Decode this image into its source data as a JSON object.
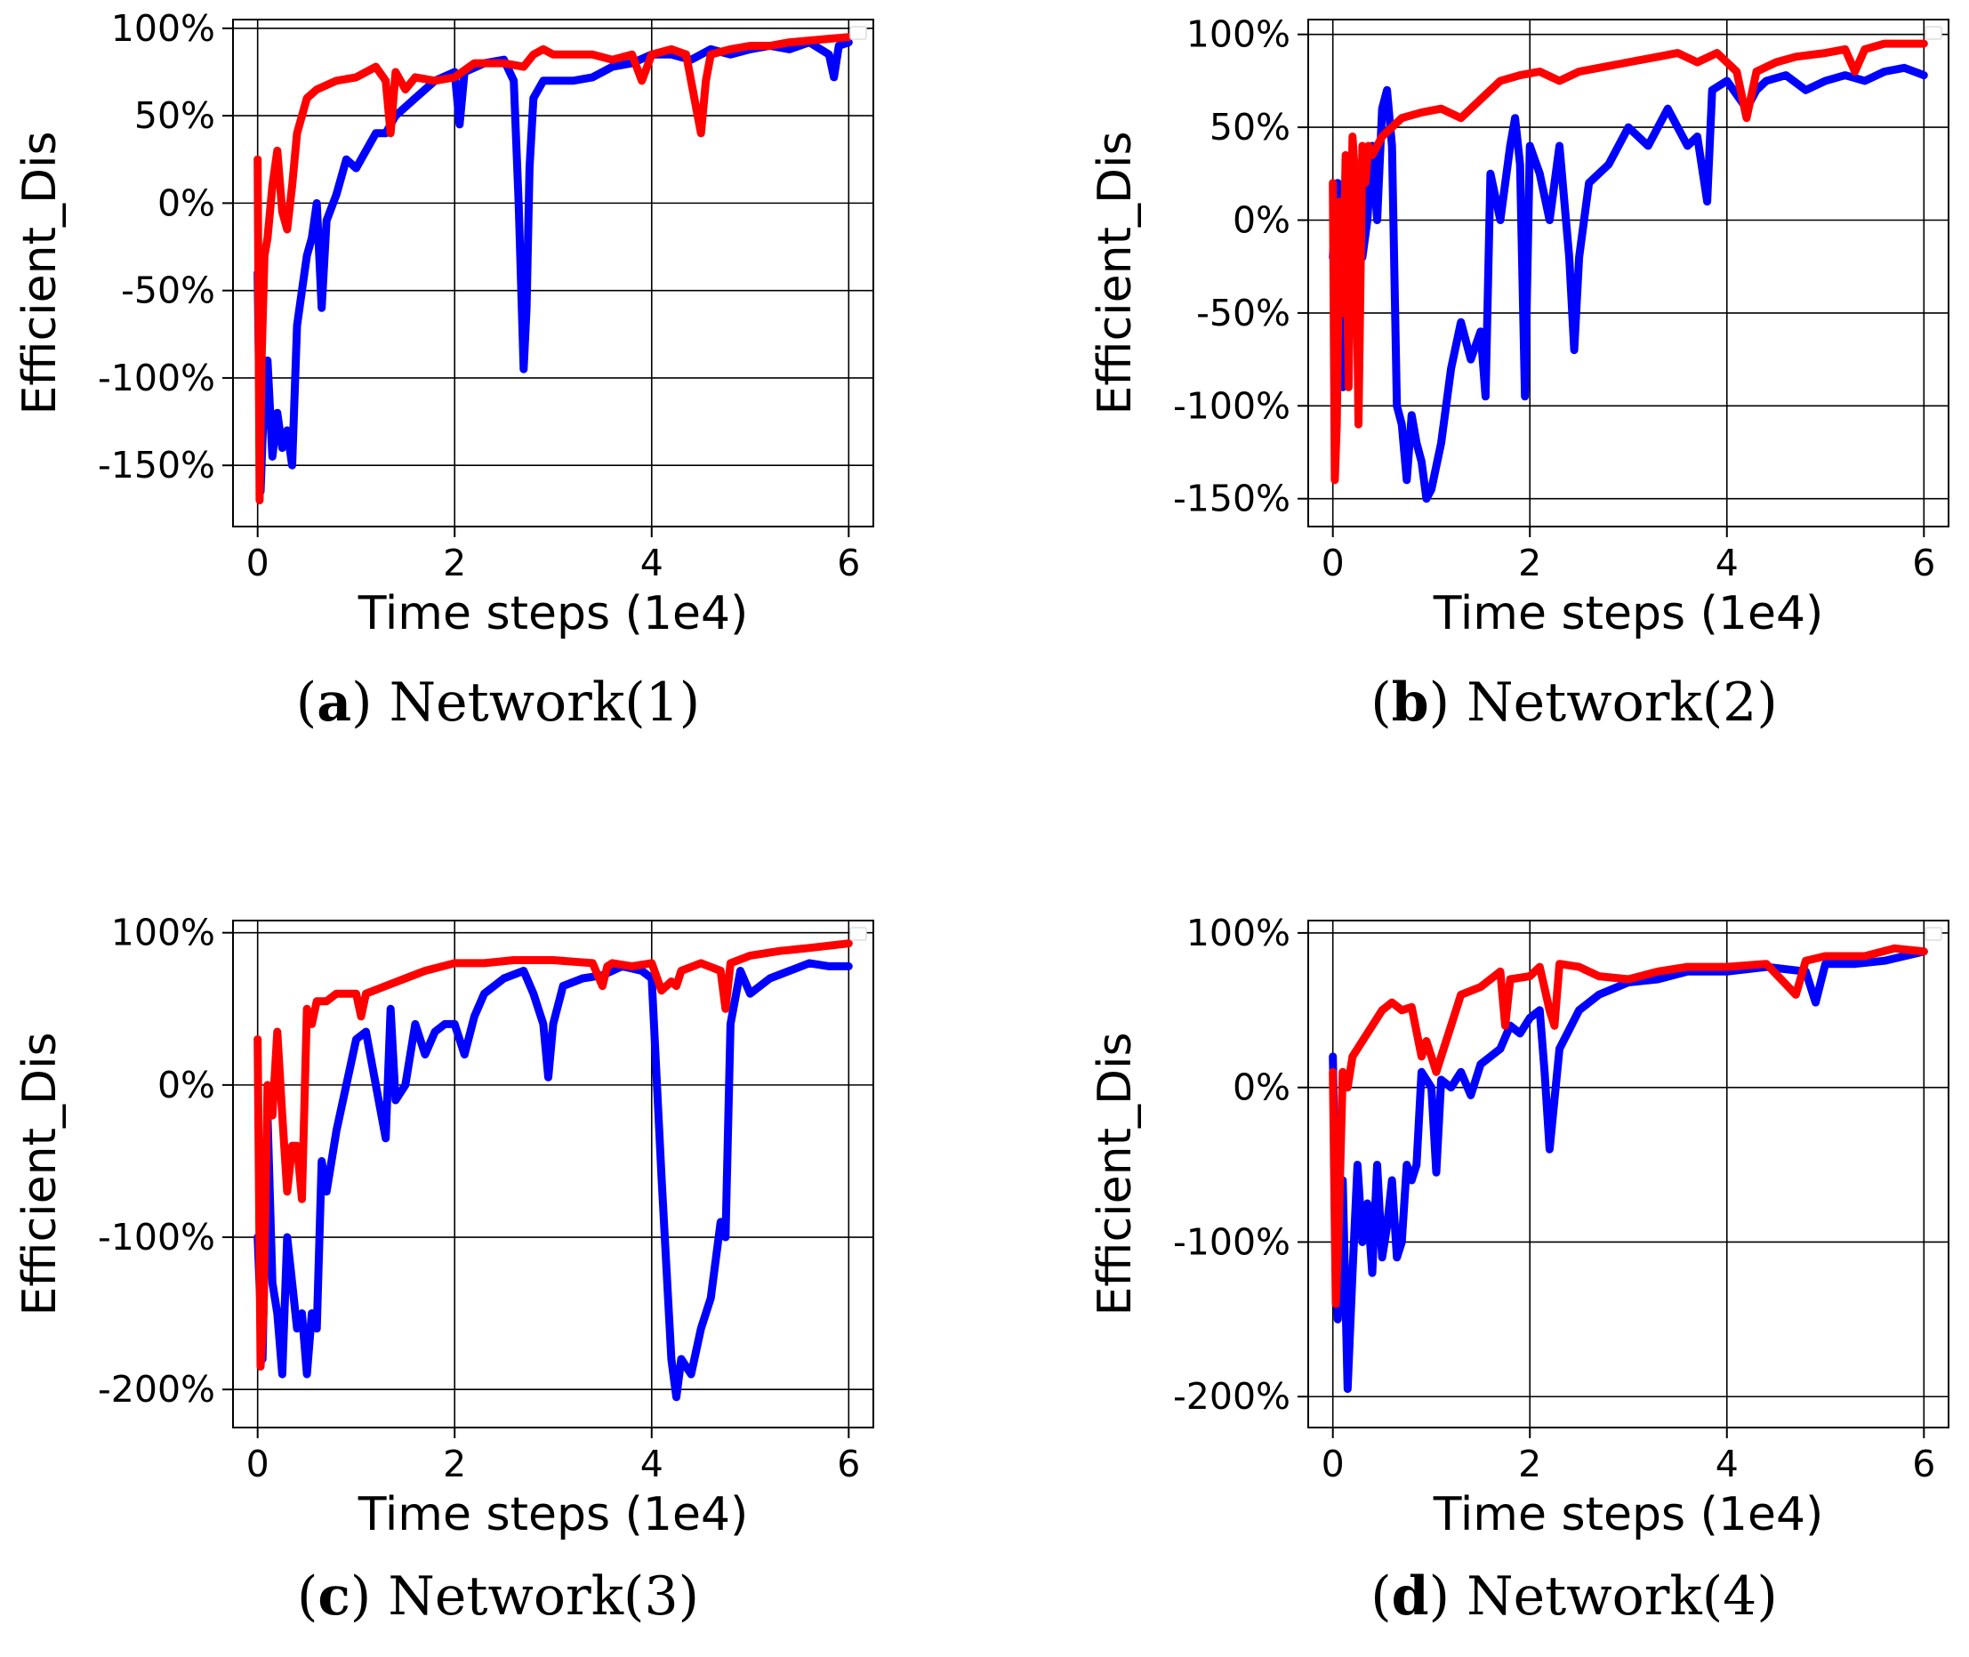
{
  "chart_data": [
    {
      "type": "line",
      "caption": {
        "letter": "a",
        "title": "Network(1)"
      },
      "xlabel": "Time steps (1e4)",
      "ylabel": "Efficient_Dis",
      "xlim": [
        -0.25,
        6.25
      ],
      "ylim": [
        -185,
        105
      ],
      "xticks": [
        0,
        2,
        4,
        6
      ],
      "xtick_labels": [
        "0",
        "2",
        "4",
        "6"
      ],
      "yticks": [
        -150,
        -100,
        -50,
        0,
        50,
        100
      ],
      "ytick_labels": [
        "-150%",
        "-100%",
        "-50%",
        "0%",
        "50%",
        "100%"
      ],
      "grid": true,
      "series": [
        {
          "name": "blue",
          "color": "#0000ff",
          "x": [
            0,
            0.03,
            0.06,
            0.1,
            0.15,
            0.2,
            0.25,
            0.3,
            0.35,
            0.4,
            0.45,
            0.5,
            0.55,
            0.6,
            0.65,
            0.7,
            0.8,
            0.9,
            1.0,
            1.1,
            1.2,
            1.3,
            1.4,
            1.5,
            1.6,
            1.8,
            2.0,
            2.05,
            2.1,
            2.3,
            2.5,
            2.6,
            2.65,
            2.7,
            2.73,
            2.76,
            2.8,
            2.9,
            3.0,
            3.2,
            3.4,
            3.6,
            3.8,
            4.0,
            4.2,
            4.4,
            4.6,
            4.8,
            5.0,
            5.2,
            5.4,
            5.6,
            5.8,
            5.85,
            5.9,
            6.0
          ],
          "y": [
            -40,
            -165,
            -120,
            -90,
            -145,
            -120,
            -140,
            -130,
            -150,
            -70,
            -50,
            -30,
            -20,
            0,
            -60,
            -10,
            5,
            25,
            20,
            30,
            40,
            40,
            50,
            55,
            60,
            70,
            75,
            45,
            75,
            80,
            82,
            70,
            0,
            -95,
            -60,
            20,
            60,
            70,
            70,
            70,
            72,
            78,
            80,
            85,
            85,
            82,
            88,
            85,
            88,
            90,
            88,
            92,
            85,
            72,
            90,
            92
          ]
        },
        {
          "name": "red",
          "color": "#ff0000",
          "x": [
            0,
            0.02,
            0.04,
            0.07,
            0.1,
            0.15,
            0.2,
            0.25,
            0.3,
            0.35,
            0.4,
            0.5,
            0.6,
            0.8,
            1.0,
            1.2,
            1.3,
            1.35,
            1.4,
            1.5,
            1.6,
            1.8,
            2.0,
            2.2,
            2.5,
            2.7,
            2.8,
            2.9,
            3.0,
            3.2,
            3.4,
            3.6,
            3.8,
            3.9,
            4.0,
            4.2,
            4.35,
            4.45,
            4.5,
            4.55,
            4.6,
            4.8,
            5.0,
            5.2,
            5.4,
            5.6,
            5.8,
            6.0
          ],
          "y": [
            25,
            -170,
            -90,
            -30,
            -20,
            10,
            30,
            -5,
            -15,
            10,
            40,
            60,
            65,
            70,
            72,
            78,
            70,
            40,
            75,
            65,
            72,
            70,
            72,
            80,
            80,
            78,
            85,
            88,
            85,
            85,
            85,
            82,
            85,
            70,
            85,
            88,
            85,
            55,
            40,
            70,
            85,
            88,
            90,
            90,
            92,
            93,
            94,
            95
          ]
        }
      ]
    },
    {
      "type": "line",
      "caption": {
        "letter": "b",
        "title": "Network(2)"
      },
      "xlabel": "Time steps (1e4)",
      "ylabel": "Efficient_Dis",
      "xlim": [
        -0.25,
        6.25
      ],
      "ylim": [
        -165,
        108
      ],
      "xticks": [
        0,
        2,
        4,
        6
      ],
      "xtick_labels": [
        "0",
        "2",
        "4",
        "6"
      ],
      "yticks": [
        -150,
        -100,
        -50,
        0,
        50,
        100
      ],
      "ytick_labels": [
        "-150%",
        "-100%",
        "-50%",
        "0%",
        "50%",
        "100%"
      ],
      "grid": true,
      "series": [
        {
          "name": "blue",
          "color": "#0000ff",
          "x": [
            0,
            0.05,
            0.1,
            0.15,
            0.2,
            0.3,
            0.35,
            0.4,
            0.45,
            0.5,
            0.55,
            0.6,
            0.65,
            0.7,
            0.75,
            0.8,
            0.85,
            0.9,
            0.95,
            1.0,
            1.1,
            1.2,
            1.3,
            1.4,
            1.5,
            1.55,
            1.6,
            1.7,
            1.8,
            1.85,
            1.9,
            1.95,
            2.0,
            2.1,
            2.2,
            2.3,
            2.4,
            2.45,
            2.5,
            2.6,
            2.8,
            3.0,
            3.2,
            3.4,
            3.6,
            3.7,
            3.8,
            3.85,
            4.0,
            4.2,
            4.3,
            4.4,
            4.6,
            4.8,
            5.0,
            5.2,
            5.4,
            5.6,
            5.8,
            6.0
          ],
          "y": [
            -20,
            20,
            -90,
            10,
            30,
            -20,
            0,
            40,
            0,
            60,
            70,
            40,
            -100,
            -110,
            -140,
            -105,
            -120,
            -130,
            -150,
            -145,
            -120,
            -80,
            -55,
            -75,
            -60,
            -95,
            25,
            0,
            40,
            55,
            30,
            -95,
            40,
            25,
            0,
            40,
            -20,
            -70,
            -20,
            20,
            30,
            50,
            40,
            60,
            40,
            45,
            10,
            70,
            75,
            60,
            70,
            75,
            78,
            70,
            75,
            78,
            75,
            80,
            82,
            78
          ]
        },
        {
          "name": "red",
          "color": "#ff0000",
          "x": [
            0,
            0.02,
            0.04,
            0.07,
            0.1,
            0.13,
            0.16,
            0.2,
            0.23,
            0.26,
            0.3,
            0.33,
            0.36,
            0.4,
            0.5,
            0.7,
            0.9,
            1.1,
            1.3,
            1.5,
            1.7,
            1.9,
            2.1,
            2.3,
            2.5,
            2.7,
            3.0,
            3.3,
            3.5,
            3.7,
            3.9,
            4.1,
            4.2,
            4.3,
            4.5,
            4.7,
            5.0,
            5.2,
            5.3,
            5.4,
            5.6,
            5.8,
            6.0
          ],
          "y": [
            20,
            -140,
            -110,
            10,
            -50,
            35,
            -90,
            45,
            20,
            -110,
            40,
            20,
            40,
            35,
            45,
            55,
            58,
            60,
            55,
            65,
            75,
            78,
            80,
            75,
            80,
            82,
            85,
            88,
            90,
            85,
            90,
            80,
            55,
            80,
            85,
            88,
            90,
            92,
            80,
            92,
            95,
            95,
            95
          ]
        }
      ]
    },
    {
      "type": "line",
      "caption": {
        "letter": "c",
        "title": "Network(3)"
      },
      "xlabel": "Time steps (1e4)",
      "ylabel": "Efficient_Dis",
      "xlim": [
        -0.25,
        6.25
      ],
      "ylim": [
        -225,
        108
      ],
      "xticks": [
        0,
        2,
        4,
        6
      ],
      "xtick_labels": [
        "0",
        "2",
        "4",
        "6"
      ],
      "yticks": [
        -200,
        -100,
        0,
        100
      ],
      "ytick_labels": [
        "-200%",
        "-100%",
        "0%",
        "100%"
      ],
      "grid": true,
      "series": [
        {
          "name": "blue",
          "color": "#0000ff",
          "x": [
            0,
            0.05,
            0.1,
            0.15,
            0.2,
            0.25,
            0.3,
            0.35,
            0.4,
            0.45,
            0.5,
            0.55,
            0.6,
            0.65,
            0.7,
            0.8,
            0.9,
            1.0,
            1.1,
            1.2,
            1.3,
            1.35,
            1.4,
            1.5,
            1.6,
            1.7,
            1.8,
            1.9,
            2.0,
            2.1,
            2.2,
            2.3,
            2.5,
            2.7,
            2.8,
            2.9,
            2.95,
            3.0,
            3.1,
            3.3,
            3.5,
            3.7,
            3.9,
            4.0,
            4.1,
            4.2,
            4.25,
            4.3,
            4.4,
            4.5,
            4.6,
            4.7,
            4.75,
            4.8,
            4.9,
            5.0,
            5.2,
            5.4,
            5.6,
            5.8,
            6.0
          ],
          "y": [
            -100,
            -180,
            -20,
            -130,
            -150,
            -190,
            -100,
            -130,
            -160,
            -150,
            -190,
            -150,
            -160,
            -50,
            -70,
            -30,
            0,
            30,
            35,
            0,
            -35,
            50,
            -10,
            0,
            40,
            20,
            35,
            40,
            40,
            20,
            45,
            60,
            70,
            75,
            60,
            40,
            5,
            40,
            65,
            70,
            72,
            78,
            75,
            70,
            -60,
            -180,
            -205,
            -180,
            -190,
            -160,
            -140,
            -90,
            -100,
            40,
            75,
            60,
            70,
            75,
            80,
            78,
            78
          ]
        },
        {
          "name": "red",
          "color": "#ff0000",
          "x": [
            0,
            0.03,
            0.06,
            0.1,
            0.15,
            0.2,
            0.25,
            0.3,
            0.35,
            0.4,
            0.45,
            0.5,
            0.55,
            0.6,
            0.7,
            0.8,
            1.0,
            1.05,
            1.1,
            1.3,
            1.5,
            1.7,
            2.0,
            2.3,
            2.6,
            3.0,
            3.4,
            3.5,
            3.55,
            3.6,
            3.8,
            4.0,
            4.1,
            4.2,
            4.25,
            4.3,
            4.5,
            4.7,
            4.75,
            4.8,
            5.0,
            5.3,
            5.6,
            6.0
          ],
          "y": [
            30,
            -185,
            -150,
            0,
            -20,
            35,
            -20,
            -70,
            -40,
            -40,
            -75,
            50,
            40,
            55,
            55,
            60,
            60,
            45,
            60,
            65,
            70,
            75,
            80,
            80,
            82,
            82,
            80,
            65,
            78,
            80,
            78,
            80,
            62,
            68,
            65,
            75,
            80,
            75,
            50,
            80,
            85,
            88,
            90,
            93
          ]
        }
      ]
    },
    {
      "type": "line",
      "caption": {
        "letter": "d",
        "title": "Network(4)"
      },
      "xlabel": "Time steps (1e4)",
      "ylabel": "Efficient_Dis",
      "xlim": [
        -0.25,
        6.25
      ],
      "ylim": [
        -220,
        108
      ],
      "xticks": [
        0,
        2,
        4,
        6
      ],
      "xtick_labels": [
        "0",
        "2",
        "4",
        "6"
      ],
      "yticks": [
        -200,
        -100,
        0,
        100
      ],
      "ytick_labels": [
        "-200%",
        "-100%",
        "0%",
        "100%"
      ],
      "grid": true,
      "series": [
        {
          "name": "blue",
          "color": "#0000ff",
          "x": [
            0,
            0.05,
            0.1,
            0.15,
            0.2,
            0.25,
            0.3,
            0.35,
            0.4,
            0.45,
            0.5,
            0.55,
            0.6,
            0.65,
            0.7,
            0.75,
            0.8,
            0.85,
            0.9,
            1.0,
            1.05,
            1.1,
            1.2,
            1.3,
            1.4,
            1.5,
            1.6,
            1.7,
            1.8,
            1.9,
            2.0,
            2.1,
            2.15,
            2.2,
            2.3,
            2.5,
            2.7,
            3.0,
            3.3,
            3.6,
            4.0,
            4.4,
            4.8,
            4.9,
            5.0,
            5.3,
            5.6,
            6.0
          ],
          "y": [
            20,
            -150,
            -60,
            -195,
            -120,
            -50,
            -100,
            -75,
            -120,
            -50,
            -110,
            -90,
            -60,
            -110,
            -100,
            -50,
            -60,
            -50,
            10,
            0,
            -55,
            5,
            0,
            10,
            -5,
            15,
            20,
            25,
            40,
            35,
            45,
            50,
            10,
            -40,
            25,
            50,
            60,
            68,
            70,
            75,
            75,
            78,
            75,
            55,
            80,
            80,
            82,
            88
          ]
        },
        {
          "name": "red",
          "color": "#ff0000",
          "x": [
            0,
            0.03,
            0.06,
            0.1,
            0.15,
            0.2,
            0.3,
            0.4,
            0.5,
            0.6,
            0.7,
            0.8,
            0.9,
            0.95,
            1.0,
            1.05,
            1.1,
            1.2,
            1.3,
            1.5,
            1.7,
            1.75,
            1.8,
            2.0,
            2.1,
            2.2,
            2.25,
            2.3,
            2.5,
            2.7,
            3.0,
            3.3,
            3.6,
            4.0,
            4.4,
            4.7,
            4.8,
            5.0,
            5.4,
            5.7,
            6.0
          ],
          "y": [
            10,
            -140,
            -90,
            10,
            0,
            20,
            30,
            40,
            50,
            55,
            50,
            52,
            20,
            30,
            20,
            10,
            20,
            40,
            60,
            65,
            75,
            40,
            70,
            72,
            78,
            50,
            40,
            80,
            78,
            72,
            70,
            75,
            78,
            78,
            80,
            60,
            82,
            85,
            85,
            90,
            88
          ]
        }
      ]
    }
  ]
}
